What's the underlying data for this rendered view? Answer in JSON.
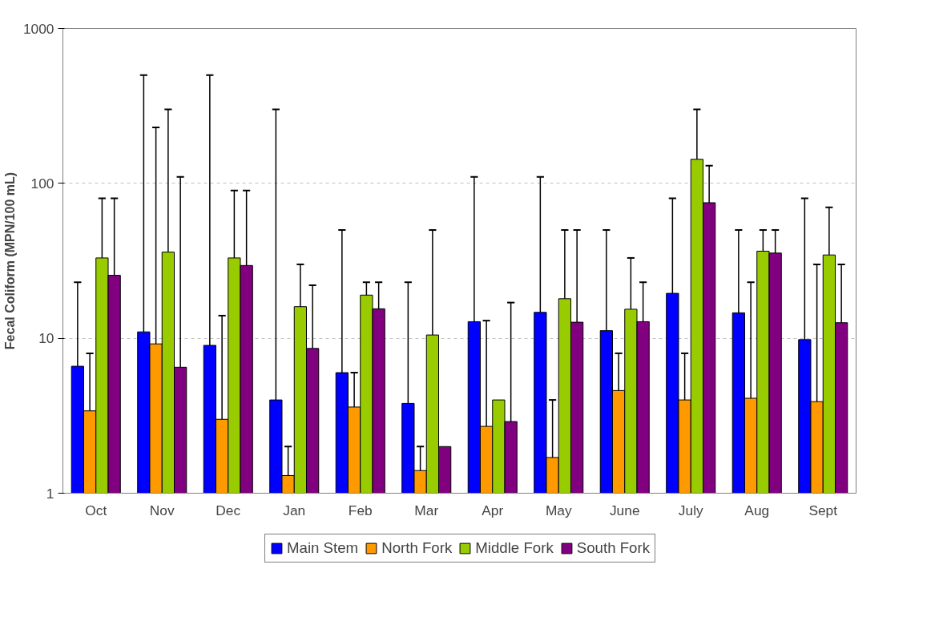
{
  "chart_data": {
    "type": "bar",
    "ylabel": "Fecal Coliform (MPN/100 mL)",
    "log": true,
    "ylim": [
      1,
      1000
    ],
    "yticks": [
      1,
      10,
      100,
      1000
    ],
    "grid": "y",
    "legend": "bottom",
    "categories": [
      "Oct",
      "Nov",
      "Dec",
      "Jan",
      "Feb",
      "Mar",
      "Apr",
      "May",
      "June",
      "July",
      "Aug",
      "Sept"
    ],
    "series": [
      {
        "name": "Main Stem",
        "color": "#0000ff",
        "values": [
          6.6,
          11,
          9,
          4,
          6,
          3.8,
          12.8,
          14.7,
          11.2,
          19.5,
          14.6,
          9.8
        ],
        "errors": [
          [
            6.6,
            23
          ],
          [
            11,
            500
          ],
          [
            9,
            500
          ],
          [
            4,
            300
          ],
          [
            6,
            50
          ],
          [
            3.8,
            23
          ],
          [
            12.8,
            110
          ],
          [
            14.7,
            110
          ],
          [
            11.2,
            50
          ],
          [
            19.5,
            80
          ],
          [
            14.6,
            50
          ],
          [
            9.8,
            80
          ]
        ]
      },
      {
        "name": "North Fork",
        "color": "#ff9900",
        "values": [
          3.4,
          9.2,
          3,
          1.3,
          3.6,
          1.4,
          2.7,
          1.7,
          4.6,
          4,
          4.1,
          3.9
        ],
        "errors": [
          [
            3.4,
            8
          ],
          [
            9.2,
            230
          ],
          [
            3,
            14
          ],
          [
            1.3,
            2
          ],
          [
            3.6,
            6
          ],
          [
            1.4,
            2
          ],
          [
            2.7,
            13
          ],
          [
            1.7,
            4
          ],
          [
            4.6,
            8
          ],
          [
            4,
            8
          ],
          [
            4.1,
            23
          ],
          [
            3.9,
            30
          ]
        ]
      },
      {
        "name": "Middle Fork",
        "color": "#99cc00",
        "values": [
          33,
          36,
          33,
          16,
          19,
          10.5,
          4,
          18,
          15.4,
          143,
          36.5,
          34.5
        ],
        "errors": [
          [
            33,
            80
          ],
          [
            36,
            300
          ],
          [
            33,
            90
          ],
          [
            16,
            30
          ],
          [
            19,
            23
          ],
          [
            10.5,
            50
          ],
          null,
          [
            18,
            50
          ],
          [
            15.4,
            33
          ],
          [
            143,
            300
          ],
          [
            36.5,
            50
          ],
          [
            34.5,
            70
          ]
        ]
      },
      {
        "name": "South Fork",
        "color": "#800080",
        "values": [
          25.5,
          6.5,
          29.5,
          8.6,
          15.5,
          2,
          2.9,
          12.7,
          12.8,
          75,
          35.5,
          12.6
        ],
        "errors": [
          [
            25.5,
            80
          ],
          [
            6.5,
            110
          ],
          [
            29.5,
            90
          ],
          [
            8.6,
            22
          ],
          [
            15.5,
            23
          ],
          null,
          [
            2.9,
            17
          ],
          [
            12.7,
            50
          ],
          [
            12.8,
            23
          ],
          [
            75,
            130
          ],
          [
            35.5,
            50
          ],
          [
            12.6,
            30
          ]
        ]
      }
    ]
  }
}
